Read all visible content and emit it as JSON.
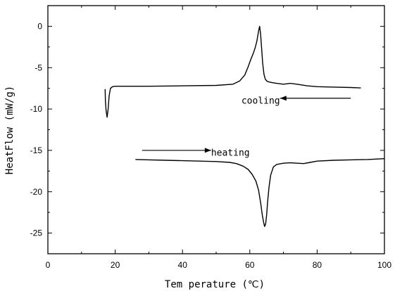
{
  "chart_data": {
    "type": "line",
    "xlabel": "Tem perature (℃)",
    "ylabel": "HeatFlow (mW/g)",
    "xlim": [
      0,
      100
    ],
    "ylim": [
      -27.5,
      2.5
    ],
    "xticks": [
      0,
      20,
      40,
      60,
      80,
      100
    ],
    "yticks": [
      0,
      -5,
      -10,
      -15,
      -20,
      -25
    ],
    "grid": false,
    "series": [
      {
        "name": "",
        "x": [
          17.0,
          17.1,
          17.3,
          17.6,
          17.9,
          18.2,
          18.6,
          19.2,
          20.0,
          25.0,
          30.0,
          40.0,
          50.0,
          55.0,
          57.0,
          58.5,
          59.5,
          60.3,
          61.0,
          61.6,
          62.1,
          62.6,
          62.9,
          63.2,
          63.5,
          63.8,
          64.2,
          64.6,
          65.0,
          65.5,
          66.5,
          68.0,
          70.0,
          72.0,
          74.0,
          77.0,
          80.0,
          85.0,
          90.0,
          93.0
        ],
        "y": [
          -7.6,
          -9.0,
          -10.2,
          -11.0,
          -10.0,
          -8.4,
          -7.5,
          -7.3,
          -7.25,
          -7.25,
          -7.25,
          -7.2,
          -7.15,
          -7.0,
          -6.6,
          -5.9,
          -4.9,
          -4.0,
          -3.3,
          -2.6,
          -1.8,
          -0.6,
          0.0,
          -0.9,
          -2.6,
          -4.4,
          -5.8,
          -6.4,
          -6.6,
          -6.7,
          -6.8,
          -6.9,
          -7.0,
          -6.9,
          -7.0,
          -7.2,
          -7.3,
          -7.35,
          -7.4,
          -7.45
        ]
      },
      {
        "name": "",
        "x": [
          26.0,
          30.0,
          35.0,
          40.0,
          45.0,
          50.0,
          54.0,
          56.0,
          58.0,
          59.5,
          60.7,
          61.8,
          62.6,
          63.2,
          63.7,
          64.1,
          64.4,
          64.7,
          65.0,
          65.3,
          65.7,
          66.2,
          67.0,
          68.0,
          70.0,
          72.0,
          74.0,
          76.0,
          78.0,
          80.0,
          85.0,
          90.0,
          95.0,
          100.0
        ],
        "y": [
          -16.1,
          -16.15,
          -16.2,
          -16.25,
          -16.3,
          -16.35,
          -16.45,
          -16.6,
          -16.9,
          -17.3,
          -17.9,
          -18.7,
          -19.8,
          -21.3,
          -22.8,
          -23.7,
          -24.2,
          -23.9,
          -22.8,
          -21.2,
          -19.5,
          -18.0,
          -17.0,
          -16.7,
          -16.55,
          -16.5,
          -16.55,
          -16.6,
          -16.45,
          -16.3,
          -16.2,
          -16.15,
          -16.1,
          -16.0
        ]
      }
    ],
    "annotations": [
      {
        "text": "cooling",
        "arrow_from": [
          90.0,
          -8.7
        ],
        "arrow_to": [
          69.0,
          -8.7
        ],
        "text_at": [
          57.5,
          -9.0
        ]
      },
      {
        "text": "heating",
        "arrow_from": [
          28.0,
          -15.0
        ],
        "arrow_to": [
          48.5,
          -15.0
        ],
        "text_at": [
          48.5,
          -15.3
        ]
      }
    ]
  }
}
